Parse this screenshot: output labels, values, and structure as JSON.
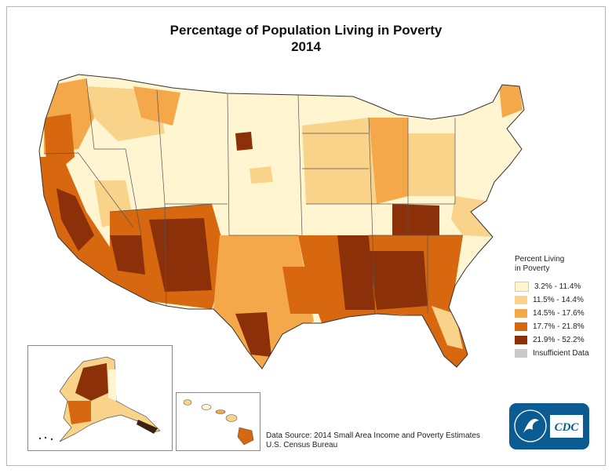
{
  "title": {
    "line1": "Percentage of Population Living in Poverty",
    "line2": "2014"
  },
  "legend": {
    "title_line1": "Percent Living",
    "title_line2": "in Poverty",
    "items": [
      {
        "label": "3.2% - 11.4%",
        "color": "#fff6d1"
      },
      {
        "label": "11.5% - 14.4%",
        "color": "#f9d38a"
      },
      {
        "label": "14.5% - 17.6%",
        "color": "#f5a84a"
      },
      {
        "label": "17.7% - 21.8%",
        "color": "#d8680f"
      },
      {
        "label": "21.9% - 52.2%",
        "color": "#8b3009"
      },
      {
        "label": "Insufficient Data",
        "color": "#c9c9c9"
      }
    ]
  },
  "source": {
    "line1": "Data Source: 2014 Small Area Income and Poverty Estimates",
    "line2": "U.S. Census Bureau"
  },
  "logo": {
    "text": "CDC",
    "color": "#0b5c92"
  }
}
